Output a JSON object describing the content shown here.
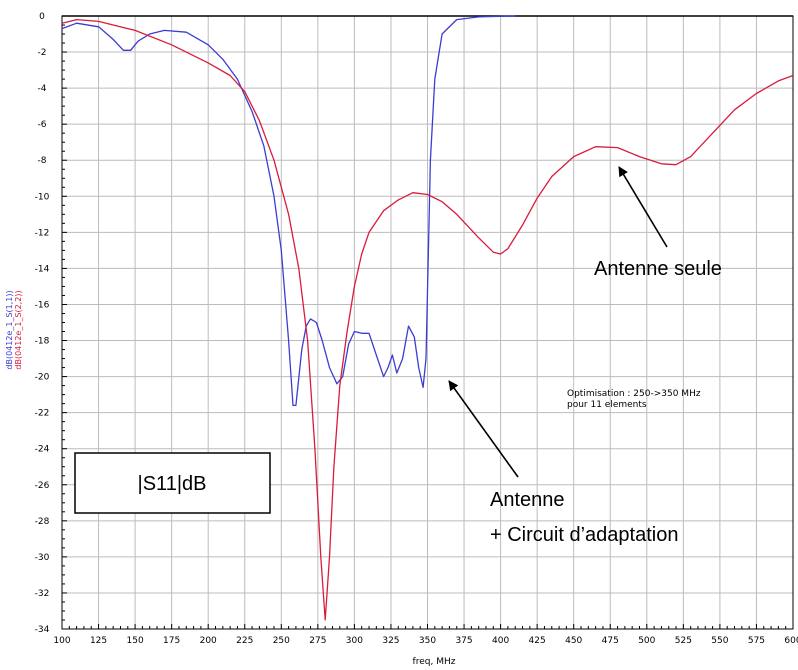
{
  "chart_data": {
    "type": "line",
    "xlabel": "freq, MHz",
    "ylabel_series": [
      "dB(0412e_1_S(1,1))",
      "dB(0412e_1_S(2,2))"
    ],
    "xlim": [
      100,
      600
    ],
    "ylim": [
      -34,
      0
    ],
    "x_ticks": [
      "100",
      "125",
      "150",
      "175",
      "200",
      "225",
      "250",
      "275",
      "300",
      "325",
      "350",
      "375",
      "400",
      "425",
      "450",
      "475",
      "500",
      "525",
      "550",
      "575",
      "600"
    ],
    "y_ticks": [
      "0",
      "-2",
      "-4",
      "-6",
      "-8",
      "-10",
      "-12",
      "-14",
      "-16",
      "-18",
      "-20",
      "-22",
      "-24",
      "-26",
      "-28",
      "-30",
      "-32",
      "-34"
    ],
    "grid": true,
    "series": [
      {
        "name": "dB(0412e_1_S(1,1))",
        "color": "#3c3cd2",
        "points": [
          [
            100,
            -0.7
          ],
          [
            110,
            -0.4
          ],
          [
            125,
            -0.6
          ],
          [
            135,
            -1.3
          ],
          [
            142,
            -1.9
          ],
          [
            147,
            -1.9
          ],
          [
            152,
            -1.4
          ],
          [
            160,
            -1.0
          ],
          [
            170,
            -0.8
          ],
          [
            185,
            -0.9
          ],
          [
            200,
            -1.6
          ],
          [
            210,
            -2.4
          ],
          [
            220,
            -3.5
          ],
          [
            230,
            -5.3
          ],
          [
            238,
            -7.2
          ],
          [
            245,
            -10.0
          ],
          [
            250,
            -13.0
          ],
          [
            255,
            -18.0
          ],
          [
            258,
            -21.6
          ],
          [
            260,
            -21.6
          ],
          [
            264,
            -18.5
          ],
          [
            267,
            -17.2
          ],
          [
            270,
            -16.8
          ],
          [
            274,
            -17.0
          ],
          [
            278,
            -18.0
          ],
          [
            283,
            -19.5
          ],
          [
            288,
            -20.4
          ],
          [
            292,
            -20.0
          ],
          [
            296,
            -18.2
          ],
          [
            300,
            -17.5
          ],
          [
            305,
            -17.6
          ],
          [
            310,
            -17.6
          ],
          [
            315,
            -18.8
          ],
          [
            320,
            -20.0
          ],
          [
            323,
            -19.5
          ],
          [
            326,
            -18.8
          ],
          [
            329,
            -19.8
          ],
          [
            333,
            -19.0
          ],
          [
            337,
            -17.2
          ],
          [
            341,
            -17.8
          ],
          [
            344,
            -19.5
          ],
          [
            347,
            -20.6
          ],
          [
            349,
            -19.0
          ],
          [
            352,
            -8.0
          ],
          [
            355,
            -3.5
          ],
          [
            360,
            -1.0
          ],
          [
            370,
            -0.2
          ],
          [
            385,
            -0.05
          ],
          [
            410,
            0.0
          ]
        ]
      },
      {
        "name": "dB(0412e_1_S(2,2))",
        "color": "#d81c3c",
        "points": [
          [
            100,
            -0.4
          ],
          [
            110,
            -0.2
          ],
          [
            125,
            -0.3
          ],
          [
            150,
            -0.8
          ],
          [
            175,
            -1.6
          ],
          [
            200,
            -2.6
          ],
          [
            215,
            -3.3
          ],
          [
            225,
            -4.2
          ],
          [
            235,
            -5.8
          ],
          [
            245,
            -8.0
          ],
          [
            255,
            -11.0
          ],
          [
            262,
            -14.0
          ],
          [
            268,
            -18.0
          ],
          [
            273,
            -24.0
          ],
          [
            277,
            -30.0
          ],
          [
            280,
            -33.5
          ],
          [
            283,
            -30.0
          ],
          [
            286,
            -25.0
          ],
          [
            290,
            -20.5
          ],
          [
            295,
            -17.5
          ],
          [
            300,
            -15.0
          ],
          [
            305,
            -13.2
          ],
          [
            310,
            -12.0
          ],
          [
            320,
            -10.8
          ],
          [
            330,
            -10.2
          ],
          [
            340,
            -9.8
          ],
          [
            350,
            -9.9
          ],
          [
            360,
            -10.3
          ],
          [
            370,
            -11.0
          ],
          [
            385,
            -12.3
          ],
          [
            395,
            -13.1
          ],
          [
            400,
            -13.2
          ],
          [
            405,
            -12.9
          ],
          [
            415,
            -11.6
          ],
          [
            425,
            -10.1
          ],
          [
            435,
            -8.9
          ],
          [
            450,
            -7.8
          ],
          [
            465,
            -7.25
          ],
          [
            480,
            -7.3
          ],
          [
            495,
            -7.8
          ],
          [
            510,
            -8.2
          ],
          [
            520,
            -8.25
          ],
          [
            530,
            -7.8
          ],
          [
            545,
            -6.5
          ],
          [
            560,
            -5.2
          ],
          [
            575,
            -4.3
          ],
          [
            590,
            -3.6
          ],
          [
            600,
            -3.3
          ]
        ]
      }
    ],
    "annotations": {
      "antenne_seule": "Antenne seule",
      "antenne_line1": "Antenne",
      "antenne_line2": "+ Circuit d’adaptation",
      "optim_line1": "Optimisation : 250->350 MHz",
      "optim_line2": "pour 11 elements",
      "s11_label": "|S11|dB"
    }
  }
}
